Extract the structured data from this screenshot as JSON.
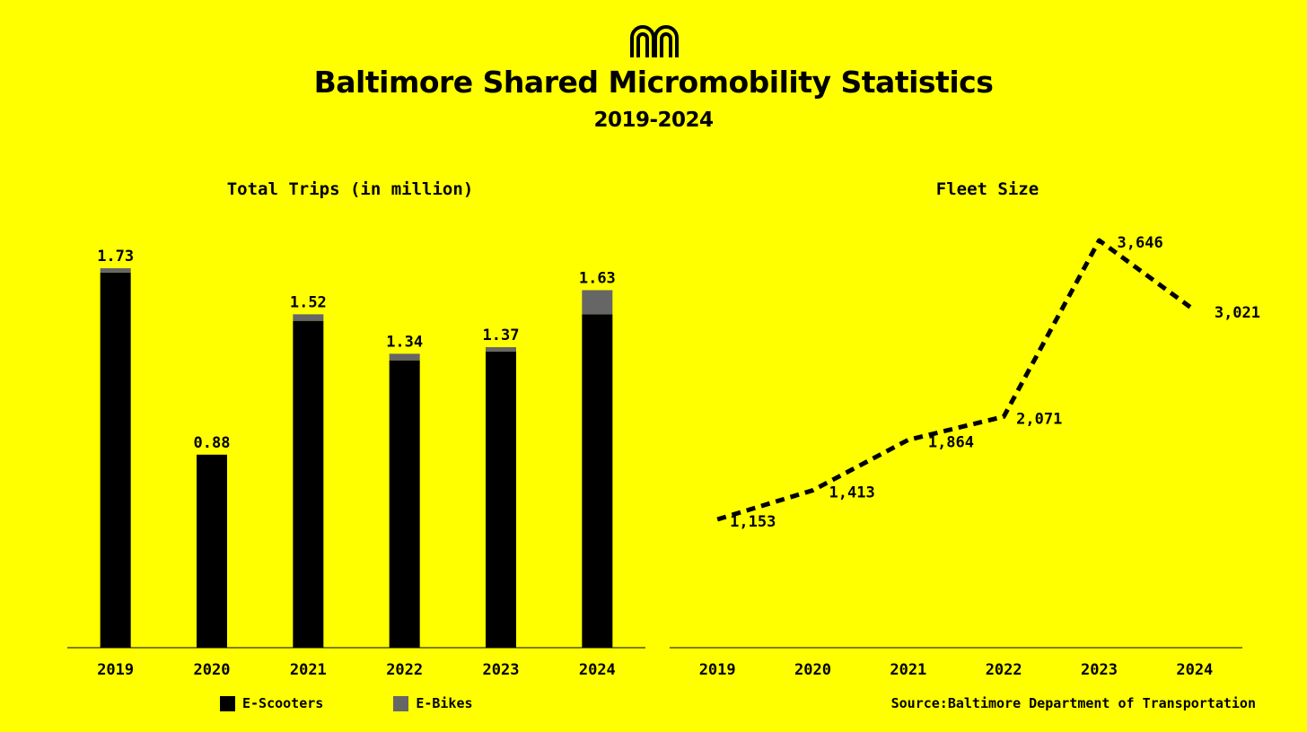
{
  "header": {
    "title": "Baltimore Shared Micromobility Statistics",
    "subtitle": "2019-2024"
  },
  "colors": {
    "background": "#ffff00",
    "e_scooters": "#000000",
    "e_bikes": "#666666",
    "line": "#000000"
  },
  "legend": {
    "e_scooters": "E-Scooters",
    "e_bikes": "E-Bikes"
  },
  "source": "Source:Baltimore Department of Transportation",
  "chart_data": [
    {
      "type": "bar",
      "stacked": true,
      "title": "Total Trips (in million)",
      "categories": [
        "2019",
        "2020",
        "2021",
        "2022",
        "2023",
        "2024"
      ],
      "series": [
        {
          "name": "E-Scooters",
          "values": [
            1.71,
            0.88,
            1.49,
            1.31,
            1.35,
            1.52
          ]
        },
        {
          "name": "E-Bikes",
          "values": [
            0.02,
            0.0,
            0.03,
            0.03,
            0.02,
            0.11
          ]
        }
      ],
      "totals": [
        1.73,
        0.88,
        1.52,
        1.34,
        1.37,
        1.63
      ],
      "total_labels": [
        "1.73",
        "0.88",
        "1.52",
        "1.34",
        "1.37",
        "1.63"
      ],
      "ylim": [
        0,
        1.73
      ],
      "grid": false,
      "legend_position": "bottom"
    },
    {
      "type": "line",
      "title": "Fleet Size",
      "categories": [
        "2019",
        "2020",
        "2021",
        "2022",
        "2023",
        "2024"
      ],
      "values": [
        1153,
        1413,
        1864,
        2071,
        3646,
        3021
      ],
      "value_labels": [
        "1,153",
        "1,413",
        "1,864",
        "2,071",
        "3,646",
        "3,021"
      ],
      "line_style": "dashed",
      "grid": false
    }
  ]
}
